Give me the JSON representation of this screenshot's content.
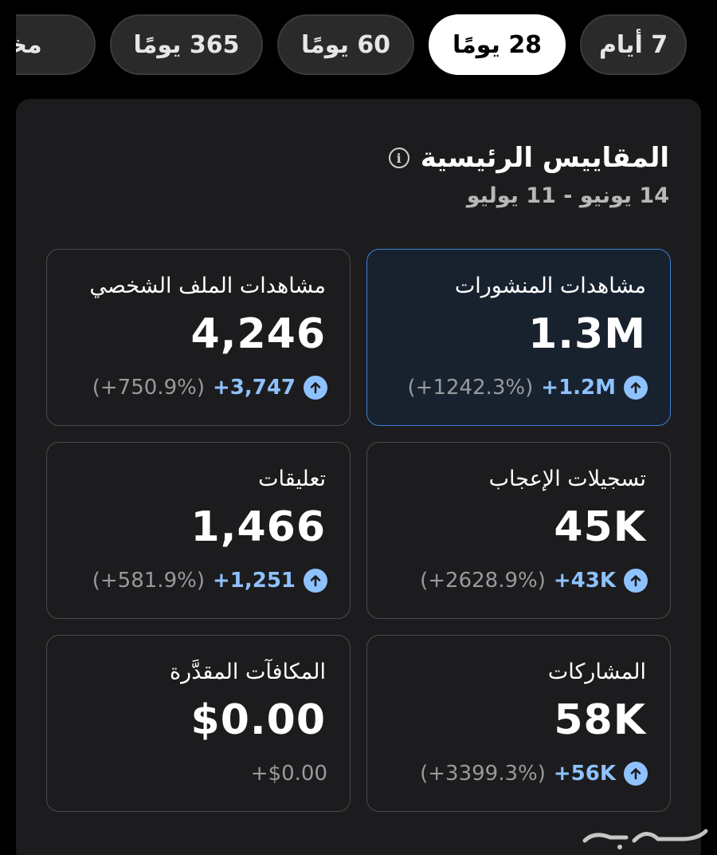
{
  "tabs": [
    {
      "label": "7 أيام",
      "active": false
    },
    {
      "label": "28 يومًا",
      "active": true
    },
    {
      "label": "60 يومًا",
      "active": false
    },
    {
      "label": "365 يومًا",
      "active": false
    },
    {
      "label": "مخصص",
      "active": false
    }
  ],
  "overview": {
    "title": "المقاييس الرئيسية",
    "date_range": "14 يونيو - 11 يوليو"
  },
  "metrics": {
    "post_views": {
      "label": "مشاهدات المنشورات",
      "value": "1.3M",
      "delta": "+1.2M",
      "pct": "(+1242.3%)"
    },
    "profile_views": {
      "label": "مشاهدات الملف الشخصي",
      "value": "4,246",
      "delta": "+3,747",
      "pct": "(+750.9%)"
    },
    "likes": {
      "label": "تسجيلات الإعجاب",
      "value": "45K",
      "delta": "+43K",
      "pct": "(+2628.9%)"
    },
    "comments": {
      "label": "تعليقات",
      "value": "1,466",
      "delta": "+1,251",
      "pct": "(+581.9%)"
    },
    "shares": {
      "label": "المشاركات",
      "value": "58K",
      "delta": "+56K",
      "pct": "(+3399.3%)"
    },
    "rewards": {
      "label": "المكافآت المقدَّرة",
      "value": "$0.00",
      "delta": "+$0.00"
    }
  },
  "colors": {
    "accent": "#8ec2ff",
    "selected_border": "#3d7fd6",
    "card_bg": "#1c1c1e"
  }
}
